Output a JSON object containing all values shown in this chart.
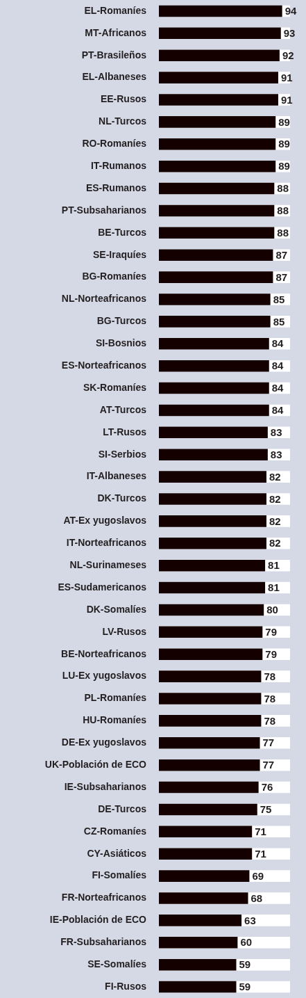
{
  "chart_data": {
    "type": "bar",
    "orientation": "horizontal",
    "categories": [
      "EL-Romaníes",
      "MT-Africanos",
      "PT-Brasileños",
      "EL-Albaneses",
      "EE-Rusos",
      "NL-Turcos",
      "RO-Romaníes",
      "IT-Rumanos",
      "ES-Rumanos",
      "PT-Subsaharianos",
      "BE-Turcos",
      "SE-Iraquíes",
      "BG-Romaníes",
      "NL-Norteafricanos",
      "BG-Turcos",
      "SI-Bosnios",
      "ES-Norteafricanos",
      "SK-Romaníes",
      "AT-Turcos",
      "LT-Rusos",
      "SI-Serbios",
      "IT-Albaneses",
      "DK-Turcos",
      "AT-Ex yugoslavos",
      "IT-Norteafricanos",
      "NL-Surinameses",
      "ES-Sudamericanos",
      "DK-Somalíes",
      "LV-Rusos",
      "BE-Norteafricanos",
      "LU-Ex yugoslavos",
      "PL-Romaníes",
      "HU-Romaníes",
      "DE-Ex yugoslavos",
      "UK-Población de ECO",
      "IE-Subsaharianos",
      "DE-Turcos",
      "CZ-Romaníes",
      "CY-Asiáticos",
      "FI-Somalíes",
      "FR-Norteafricanos",
      "IE-Población de ECO",
      "FR-Subsaharianos",
      "SE-Somalíes",
      "FI-Rusos"
    ],
    "values": [
      94,
      93,
      92,
      91,
      91,
      89,
      89,
      89,
      88,
      88,
      88,
      87,
      87,
      85,
      85,
      84,
      84,
      84,
      84,
      83,
      83,
      82,
      82,
      82,
      82,
      81,
      81,
      80,
      79,
      79,
      78,
      78,
      78,
      77,
      77,
      76,
      75,
      71,
      71,
      69,
      68,
      63,
      60,
      59,
      59
    ],
    "color": "#150000",
    "xlim": [
      0,
      100
    ],
    "data_labels": true,
    "legend": false,
    "tick_labels": "y"
  }
}
